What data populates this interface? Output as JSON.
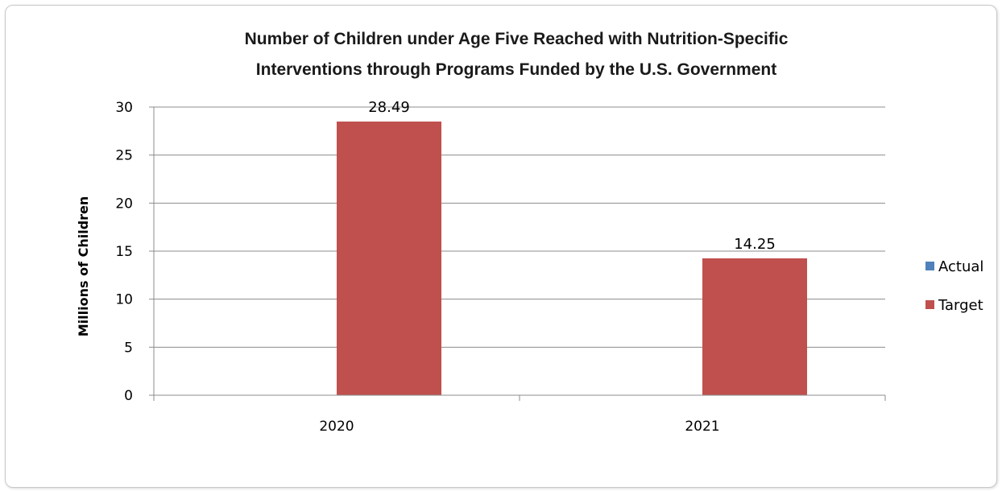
{
  "chart_data": {
    "type": "bar",
    "title": "Number of Children under Age Five Reached with Nutrition-Specific Interventions through Programs Funded by the U.S. Government",
    "title_lines": [
      "Number of Children under Age Five Reached with Nutrition-Specific",
      "Interventions through Programs Funded by the U.S. Government"
    ],
    "xlabel": "",
    "ylabel": "Millions of Children",
    "ylim": [
      0,
      30
    ],
    "yticks": [
      0,
      5,
      10,
      15,
      20,
      25,
      30
    ],
    "categories": [
      "2020",
      "2021"
    ],
    "series": [
      {
        "name": "Actual",
        "color": "#4f81bd",
        "values": [
          null,
          null
        ]
      },
      {
        "name": "Target",
        "color": "#c0504d",
        "values": [
          28.49,
          14.25
        ]
      }
    ],
    "data_labels": [
      "28.49",
      "14.25"
    ],
    "grid": true,
    "legend": "right"
  }
}
